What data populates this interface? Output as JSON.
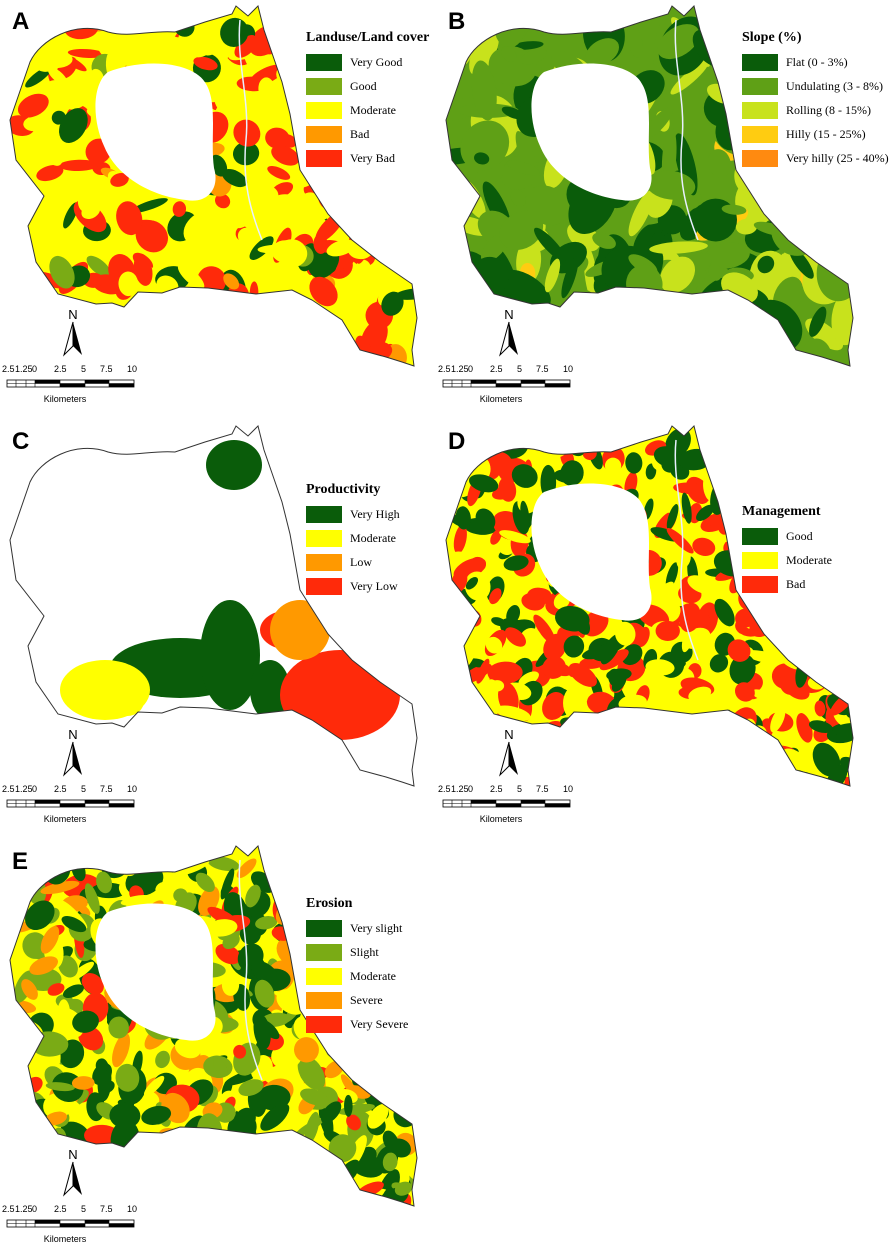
{
  "scale_bar": {
    "ticks": [
      "2.5",
      "1.25",
      "0",
      "2.5",
      "5",
      "7.5",
      "10"
    ],
    "unit": "Kilometers"
  },
  "north_label": "N",
  "panels": [
    {
      "letter": "A",
      "legend_title": "Landuse/Land cover",
      "classes": [
        {
          "label": "Very Good",
          "color": "#0a5c0a"
        },
        {
          "label": "Good",
          "color": "#7aab15"
        },
        {
          "label": "Moderate",
          "color": "#ffff00"
        },
        {
          "label": "Bad",
          "color": "#ff9900"
        },
        {
          "label": "Very Bad",
          "color": "#ff2a0a"
        }
      ]
    },
    {
      "letter": "B",
      "legend_title": "Slope (%)",
      "classes": [
        {
          "label": "Flat (0 - 3%)",
          "color": "#0a5c0a"
        },
        {
          "label": "Undulating (3 - 8%)",
          "color": "#5fa016"
        },
        {
          "label": "Rolling (8 - 15%)",
          "color": "#c8e21c"
        },
        {
          "label": "Hilly (15 - 25%)",
          "color": "#ffcc11"
        },
        {
          "label": "Very hilly (25 - 40%)",
          "color": "#ff8a10"
        }
      ]
    },
    {
      "letter": "C",
      "legend_title": "Productivity",
      "classes": [
        {
          "label": "Very High",
          "color": "#0a5c0a"
        },
        {
          "label": "Moderate",
          "color": "#ffff00"
        },
        {
          "label": "Low",
          "color": "#ff9900"
        },
        {
          "label": "Very Low",
          "color": "#ff2a0a"
        }
      ]
    },
    {
      "letter": "D",
      "legend_title": "Management",
      "classes": [
        {
          "label": "Good",
          "color": "#0a5c0a"
        },
        {
          "label": "Moderate",
          "color": "#ffff00"
        },
        {
          "label": "Bad",
          "color": "#ff2a0a"
        }
      ]
    },
    {
      "letter": "E",
      "legend_title": "Erosion",
      "classes": [
        {
          "label": "Very slight",
          "color": "#0a5c0a"
        },
        {
          "label": "Slight",
          "color": "#7aab15"
        },
        {
          "label": "Moderate",
          "color": "#ffff00"
        },
        {
          "label": "Severe",
          "color": "#ff9900"
        },
        {
          "label": "Very Severe",
          "color": "#ff2a0a"
        }
      ]
    }
  ]
}
